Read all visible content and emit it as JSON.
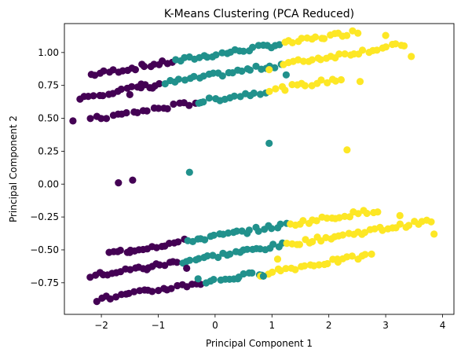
{
  "chart_data": {
    "type": "scatter",
    "title": "K-Means Clustering (PCA Reduced)",
    "xlabel": "Principal Component 1",
    "ylabel": "Principal Component 2",
    "xlim": [
      -2.65,
      4.2
    ],
    "ylim": [
      -0.99,
      1.22
    ],
    "xticks": [
      -2,
      -1,
      0,
      1,
      2,
      3,
      4
    ],
    "yticks": [
      -0.75,
      -0.5,
      -0.25,
      0.0,
      0.25,
      0.5,
      0.75,
      1.0
    ],
    "ytick_labels": [
      "−0.75",
      "−0.50",
      "−0.25",
      "0.00",
      "0.25",
      "0.50",
      "0.75",
      "1.00"
    ],
    "xtick_labels": [
      "−2",
      "−1",
      "0",
      "1",
      "2",
      "3",
      "4"
    ],
    "grid": false,
    "legend": "none",
    "cluster_colors": [
      "#440154",
      "#21918c",
      "#fde725"
    ],
    "bands": [
      {
        "x0": -2.2,
        "y0": 0.83,
        "slope": 0.07,
        "segments": [
          [
            -2.2,
            -0.7,
            0
          ],
          [
            -0.7,
            1.2,
            1
          ],
          [
            1.2,
            2.55,
            2
          ]
        ],
        "n": 60
      },
      {
        "x0": -2.4,
        "y0": 0.66,
        "slope": 0.07,
        "segments": [
          [
            -2.4,
            -0.9,
            0
          ],
          [
            -0.9,
            1.2,
            1
          ],
          [
            1.2,
            3.4,
            2
          ]
        ],
        "n": 70
      },
      {
        "x0": -2.2,
        "y0": 0.49,
        "slope": 0.07,
        "segments": [
          [
            -2.2,
            -0.3,
            0
          ],
          [
            -0.3,
            0.95,
            1
          ],
          [
            0.95,
            2.3,
            2
          ]
        ],
        "n": 50
      },
      {
        "x0": -2.2,
        "y0": -0.7,
        "slope": 0.07,
        "segments": [
          [
            -2.2,
            -0.6,
            0
          ],
          [
            -0.6,
            1.25,
            1
          ],
          [
            1.25,
            3.85,
            2
          ]
        ],
        "n": 80
      },
      {
        "x0": -1.9,
        "y0": -0.53,
        "slope": 0.07,
        "segments": [
          [
            -1.9,
            -0.5,
            0
          ],
          [
            -0.5,
            1.3,
            1
          ],
          [
            1.3,
            2.9,
            2
          ]
        ],
        "n": 60
      },
      {
        "x0": -2.1,
        "y0": -0.88,
        "slope": 0.07,
        "segments": [
          [
            -2.1,
            -0.2,
            0
          ],
          [
            -0.2,
            0.9,
            1
          ],
          [
            0.9,
            2.8,
            2
          ]
        ],
        "n": 60
      }
    ],
    "points": [
      {
        "x": -2.5,
        "y": 0.48,
        "cluster": 0
      },
      {
        "x": -1.7,
        "y": 0.01,
        "cluster": 0
      },
      {
        "x": -1.45,
        "y": 0.03,
        "cluster": 0
      },
      {
        "x": -0.45,
        "y": 0.09,
        "cluster": 1
      },
      {
        "x": 0.95,
        "y": 0.31,
        "cluster": 1
      },
      {
        "x": 2.32,
        "y": 0.26,
        "cluster": 2
      },
      {
        "x": 3.0,
        "y": 1.13,
        "cluster": 2
      },
      {
        "x": 3.45,
        "y": 0.97,
        "cluster": 2
      },
      {
        "x": 2.55,
        "y": 0.78,
        "cluster": 2
      },
      {
        "x": 3.25,
        "y": -0.24,
        "cluster": 2
      },
      {
        "x": 3.85,
        "y": -0.38,
        "cluster": 2
      },
      {
        "x": 2.15,
        "y": -0.57,
        "cluster": 2
      },
      {
        "x": 0.8,
        "y": -0.7,
        "cluster": 2
      },
      {
        "x": 0.85,
        "y": -0.7,
        "cluster": 1
      },
      {
        "x": -1.3,
        "y": 0.76,
        "cluster": 0
      },
      {
        "x": -1.1,
        "y": 0.73,
        "cluster": 0
      },
      {
        "x": -0.25,
        "y": 0.62,
        "cluster": 1
      },
      {
        "x": 1.25,
        "y": 0.83,
        "cluster": 1
      },
      {
        "x": 0.95,
        "y": 0.87,
        "cluster": 2
      },
      {
        "x": -1.5,
        "y": 0.68,
        "cluster": 0
      },
      {
        "x": -0.5,
        "y": -0.64,
        "cluster": 0
      },
      {
        "x": -0.3,
        "y": -0.72,
        "cluster": 1
      },
      {
        "x": 0.4,
        "y": -0.72,
        "cluster": 1
      },
      {
        "x": 1.1,
        "y": -0.57,
        "cluster": 2
      },
      {
        "x": -1.5,
        "y": -0.52,
        "cluster": 0
      },
      {
        "x": -1.2,
        "y": -0.65,
        "cluster": 0
      }
    ]
  }
}
